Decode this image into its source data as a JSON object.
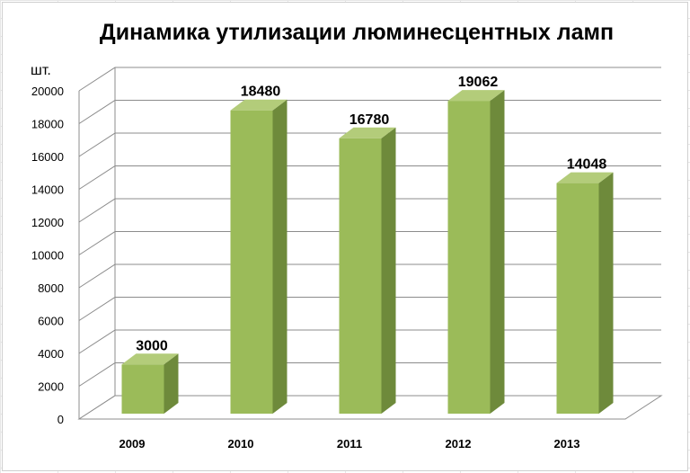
{
  "chart_data": {
    "type": "bar",
    "title": "Динамика утилизации люминесцентных ламп",
    "ylabel": "шт.",
    "xlabel": "",
    "categories": [
      "2009",
      "2010",
      "2011",
      "2012",
      "2013"
    ],
    "values": [
      3000,
      18480,
      16780,
      19062,
      14048
    ],
    "data_labels": [
      "3000",
      "18480",
      "16780",
      "19062",
      "14048"
    ],
    "ylim": [
      0,
      20000
    ],
    "y_ticks": [
      "0",
      "2000",
      "4000",
      "6000",
      "8000",
      "10000",
      "12000",
      "14000",
      "16000",
      "18000",
      "20000"
    ],
    "grid": true,
    "legend": "none",
    "style": "3d-column",
    "colors": {
      "bar_front": "#9BBB59",
      "bar_side": "#6E8A3B",
      "bar_top": "#B3CC7A",
      "grid": "#8c8c8c"
    }
  }
}
